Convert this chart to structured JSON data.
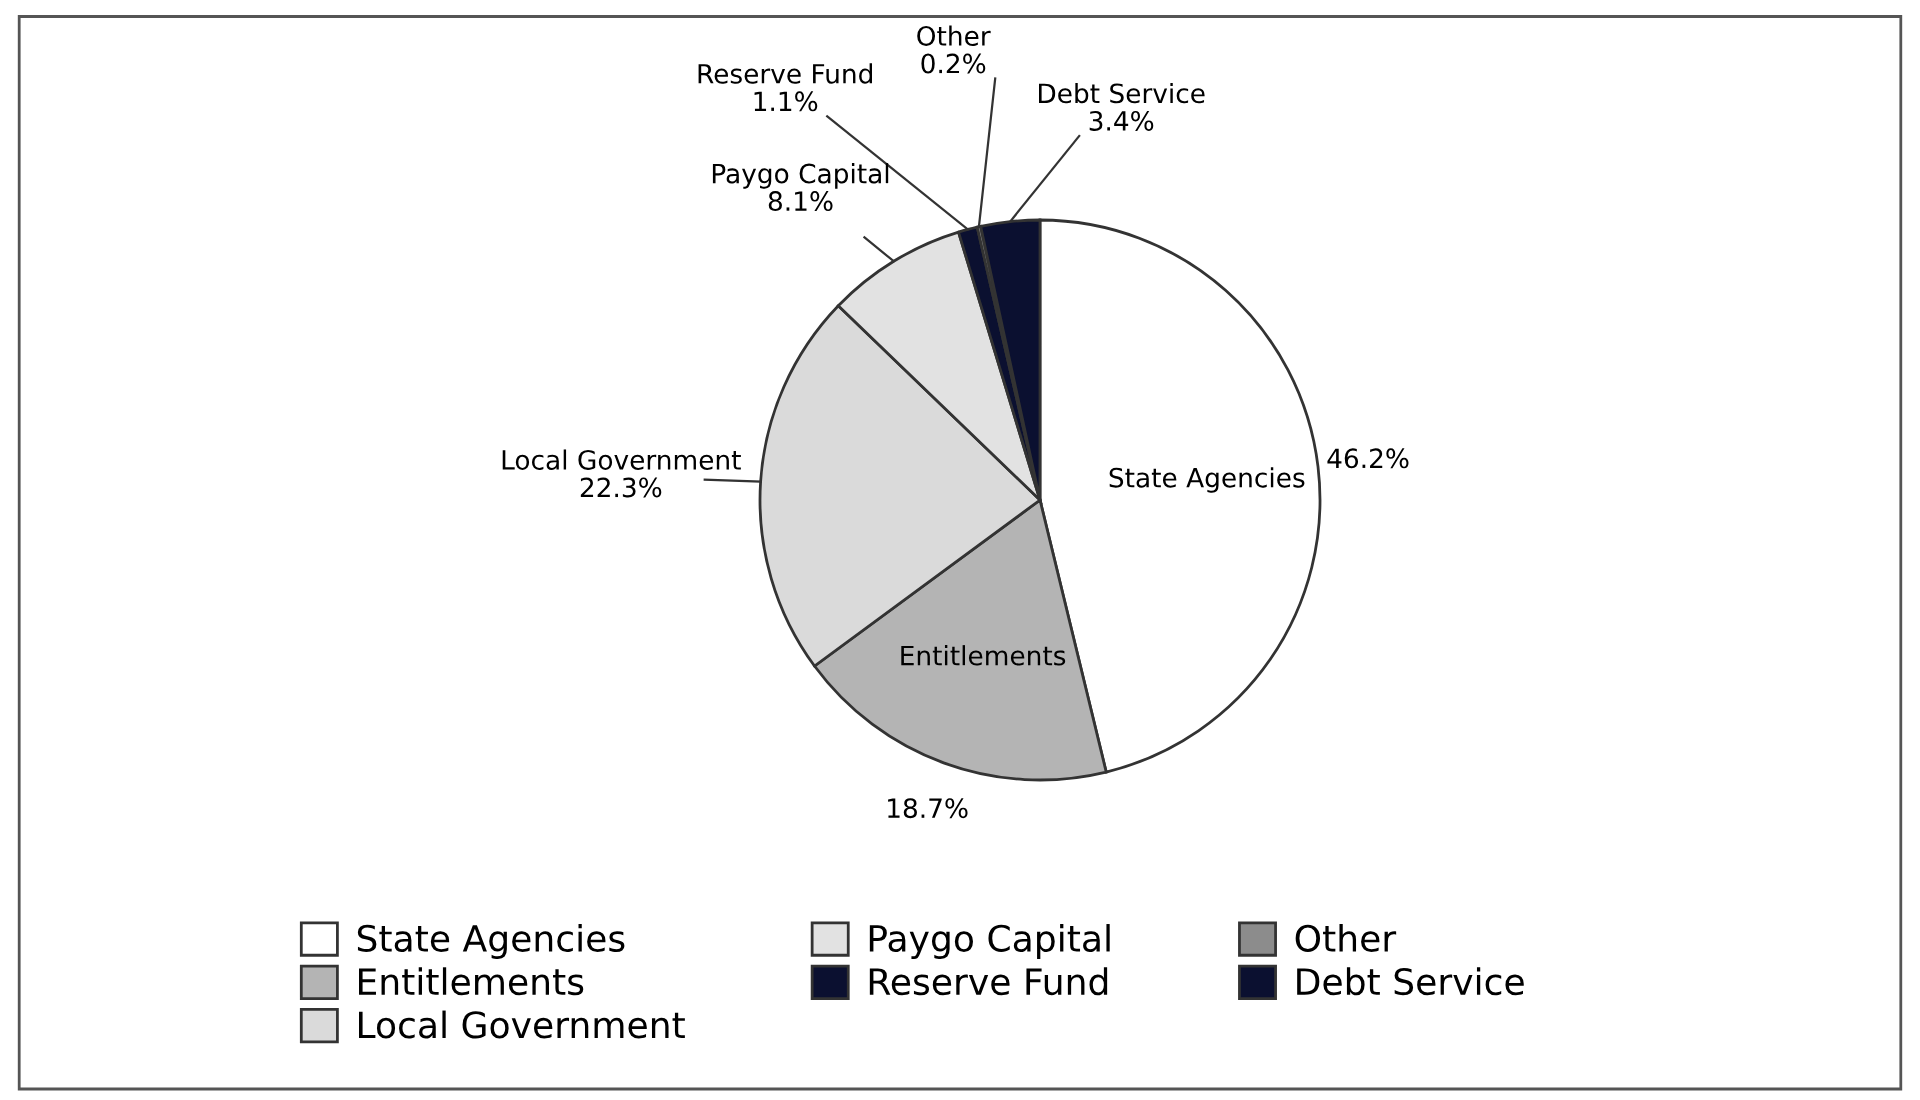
{
  "chart_data": {
    "type": "pie",
    "categories": [
      "State Agencies",
      "Entitlements",
      "Local Government",
      "Paygo Capital",
      "Reserve Fund",
      "Other",
      "Debt Service"
    ],
    "values": [
      46.2,
      18.7,
      22.3,
      8.1,
      1.1,
      0.2,
      3.4
    ],
    "colors": [
      "#ffffff",
      "#b4b4b4",
      "#dadada",
      "#e2e2e2",
      "#0b1030",
      "#8c8c8c",
      "#0b1030"
    ],
    "value_labels": [
      "46.2%",
      "18.7%",
      "22.3%",
      "8.1%",
      "1.1%",
      "0.2%",
      "3.4%"
    ],
    "legend": "bottom"
  }
}
